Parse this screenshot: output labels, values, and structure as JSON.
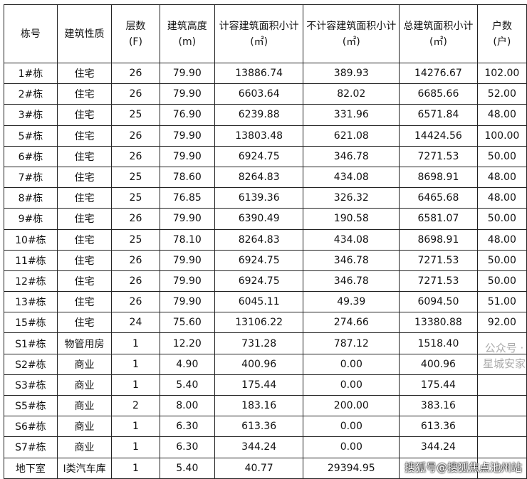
{
  "headers": [
    [
      "栋号",
      ""
    ],
    [
      "建筑性质",
      ""
    ],
    [
      "层数",
      "(F)"
    ],
    [
      "建筑高度",
      "(m)"
    ],
    [
      "计容建筑面积小计",
      "(㎡)"
    ],
    [
      "不计容建筑面积小计",
      "(㎡)"
    ],
    [
      "总建筑面积小计",
      "(㎡)"
    ],
    [
      "户数",
      "(户)"
    ]
  ],
  "rows": [
    [
      "1#栋",
      "住宅",
      "26",
      "79.90",
      "13886.74",
      "389.93",
      "14276.67",
      "102.00"
    ],
    [
      "2#栋",
      "住宅",
      "26",
      "79.90",
      "6603.64",
      "82.02",
      "6685.66",
      "52.00"
    ],
    [
      "3#栋",
      "住宅",
      "25",
      "76.90",
      "6239.88",
      "331.96",
      "6571.84",
      "48.00"
    ],
    [
      "5#栋",
      "住宅",
      "26",
      "79.90",
      "13803.48",
      "621.08",
      "14424.56",
      "100.00"
    ],
    [
      "6#栋",
      "住宅",
      "26",
      "79.90",
      "6924.75",
      "346.78",
      "7271.53",
      "50.00"
    ],
    [
      "7#栋",
      "住宅",
      "25",
      "78.60",
      "8264.83",
      "434.08",
      "8698.91",
      "48.00"
    ],
    [
      "8#栋",
      "住宅",
      "25",
      "76.85",
      "6139.36",
      "326.32",
      "6465.68",
      "48.00"
    ],
    [
      "9#栋",
      "住宅",
      "26",
      "79.90",
      "6390.49",
      "190.58",
      "6581.07",
      "50.00"
    ],
    [
      "10#栋",
      "住宅",
      "25",
      "78.10",
      "8264.83",
      "434.08",
      "8698.91",
      "48.00"
    ],
    [
      "11#栋",
      "住宅",
      "26",
      "79.90",
      "6924.75",
      "346.78",
      "7271.53",
      "50.00"
    ],
    [
      "12#栋",
      "住宅",
      "26",
      "79.90",
      "6924.75",
      "346.78",
      "7271.53",
      "50.00"
    ],
    [
      "13#栋",
      "住宅",
      "26",
      "79.90",
      "6045.11",
      "49.39",
      "6094.50",
      "51.00"
    ],
    [
      "15#栋",
      "住宅",
      "24",
      "75.60",
      "13106.22",
      "274.66",
      "13380.88",
      "92.00"
    ],
    [
      "S1#栋",
      "物管用房",
      "1",
      "12.20",
      "731.28",
      "787.12",
      "1518.40",
      ""
    ],
    [
      "S2#栋",
      "商业",
      "1",
      "4.90",
      "400.96",
      "0.00",
      "400.96",
      ""
    ],
    [
      "S3#栋",
      "商业",
      "1",
      "5.40",
      "175.44",
      "0.00",
      "175.44",
      ""
    ],
    [
      "S5#栋",
      "商业",
      "2",
      "8.00",
      "183.16",
      "200.00",
      "383.16",
      ""
    ],
    [
      "S6#栋",
      "商业",
      "1",
      "6.30",
      "613.36",
      "0.00",
      "613.36",
      ""
    ],
    [
      "S7#栋",
      "商业",
      "1",
      "6.30",
      "344.24",
      "0.00",
      "344.24",
      ""
    ],
    [
      "地下室",
      "I类汽车库",
      "1",
      "5.40",
      "40.77",
      "29394.95",
      "",
      ""
    ]
  ],
  "watermarks": [
    "公众号 · 星城安家",
    "搜狐号@搜狐焦点池州站"
  ]
}
